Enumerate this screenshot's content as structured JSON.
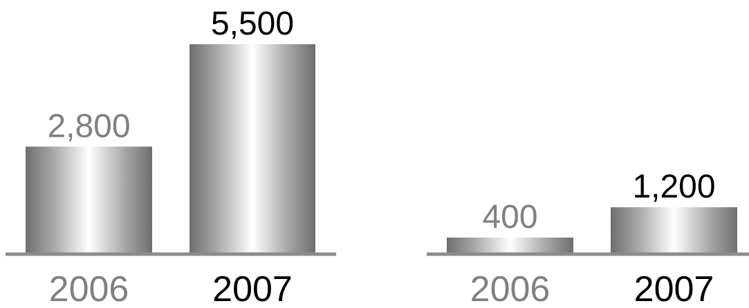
{
  "chart_data": [
    {
      "type": "bar",
      "categories": [
        "2006",
        "2007"
      ],
      "values": [
        2800,
        5500
      ],
      "value_labels": [
        "2,800",
        "5,500"
      ],
      "ylim": [
        0,
        5500
      ],
      "grid": false,
      "colors": {
        "label_2006": "#808080",
        "label_2007": "#000000",
        "baseline": "#8c8c8c",
        "bar_dark": "#6e6e6e",
        "bar_light": "#ffffff"
      }
    },
    {
      "type": "bar",
      "categories": [
        "2006",
        "2007"
      ],
      "values": [
        400,
        1200
      ],
      "value_labels": [
        "400",
        "1,200"
      ],
      "ylim": [
        0,
        5500
      ],
      "grid": false,
      "colors": {
        "label_2006": "#808080",
        "label_2007": "#000000",
        "baseline": "#8c8c8c",
        "bar_dark": "#6e6e6e",
        "bar_light": "#ffffff"
      }
    }
  ]
}
